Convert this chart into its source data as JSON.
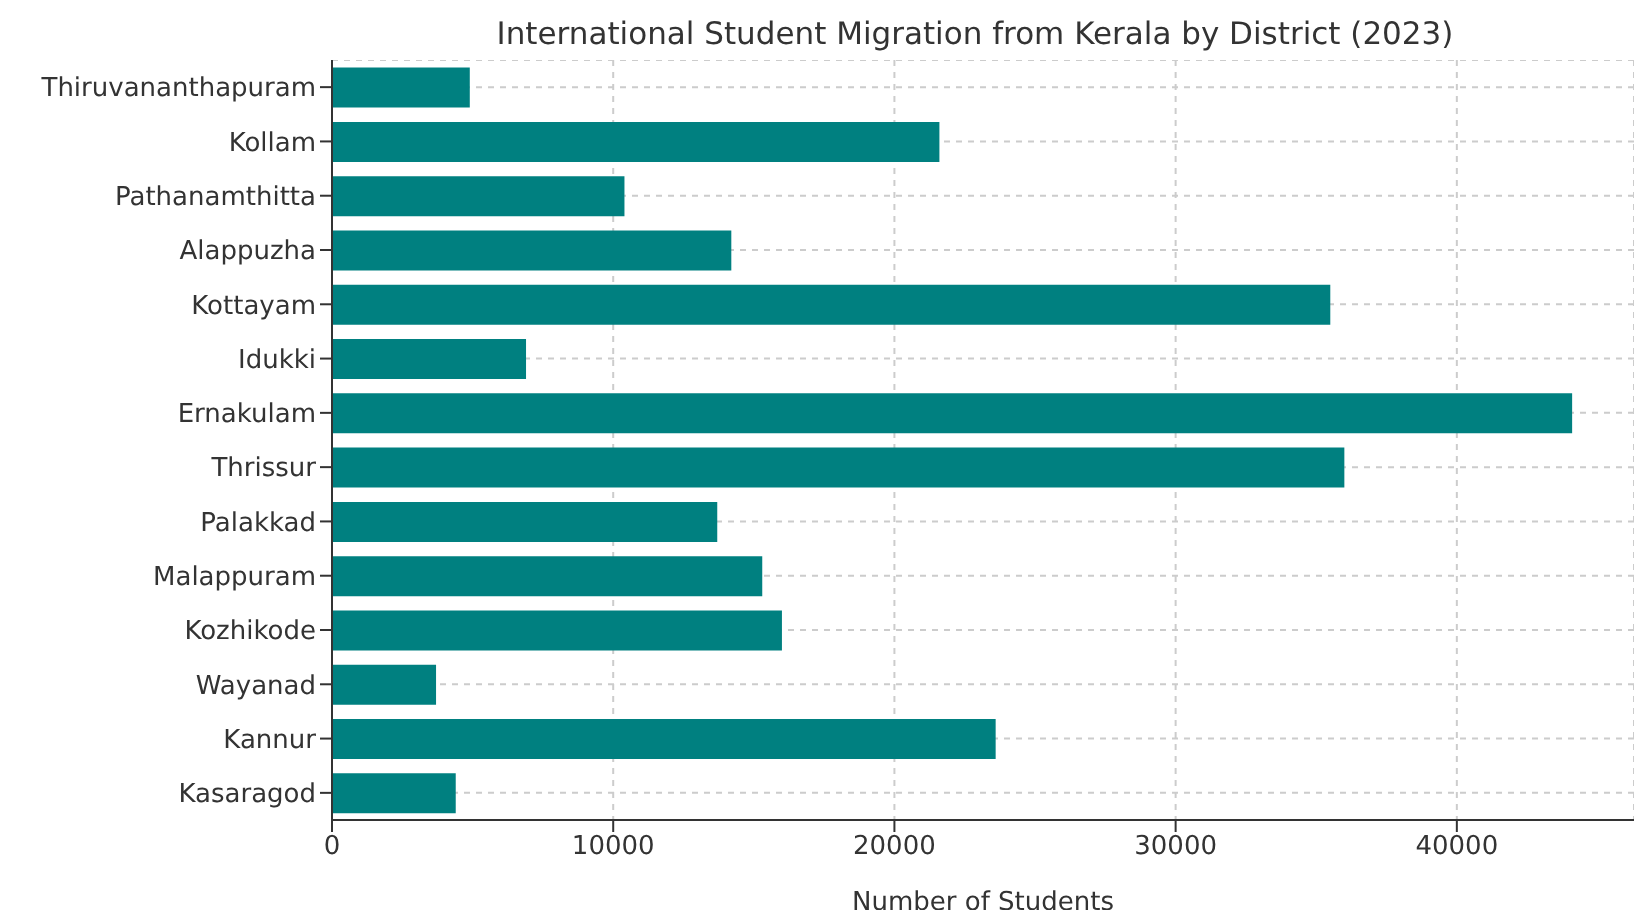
{
  "chart_data": {
    "type": "bar",
    "orientation": "horizontal",
    "title": "International Student Migration from Kerala by District (2023)",
    "xlabel": "Number of Students",
    "categories": [
      "Thiruvananthapuram",
      "Kollam",
      "Pathanamthitta",
      "Alappuzha",
      "Kottayam",
      "Idukki",
      "Ernakulam",
      "Thrissur",
      "Palakkad",
      "Malappuram",
      "Kozhikode",
      "Wayanad",
      "Kannur",
      "Kasaragod"
    ],
    "values": [
      4900,
      21600,
      10400,
      14200,
      35500,
      6900,
      44100,
      36000,
      13700,
      15300,
      16000,
      3700,
      23600,
      4400
    ],
    "color": "#008080",
    "xlim": [
      0,
      46300
    ],
    "xticks": [
      0,
      10000,
      20000,
      30000,
      40000
    ],
    "grid": true
  }
}
